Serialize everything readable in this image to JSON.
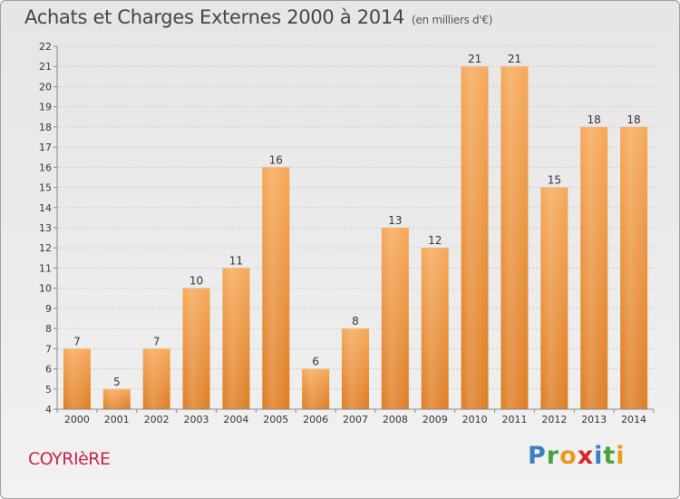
{
  "header": {
    "title": "Achats et Charges Externes 2000 à 2014",
    "subtitle": "(en milliers d'€)"
  },
  "footer": {
    "commune": "COYRIèRE",
    "logo_letters": [
      "P",
      "r",
      "o",
      "x",
      "i",
      "t",
      "i"
    ],
    "logo_colors": [
      "#3d7fc1",
      "#4aa33a",
      "#e89a1e",
      "#d42828",
      "#3d7fc1",
      "#4aa33a",
      "#e89a1e"
    ]
  },
  "colors": {
    "bar_top": "#f6a858",
    "bar_bottom": "#de7d24",
    "grid": "#cccccc",
    "axis": "#888888",
    "text": "#333333"
  },
  "chart_data": {
    "type": "bar",
    "title": "Achats et Charges Externes 2000 à 2014",
    "subtitle": "(en milliers d'€)",
    "categories": [
      "2000",
      "2001",
      "2002",
      "2003",
      "2004",
      "2005",
      "2006",
      "2007",
      "2008",
      "2009",
      "2010",
      "2011",
      "2012",
      "2013",
      "2014"
    ],
    "values": [
      7,
      5,
      7,
      10,
      11,
      16,
      6,
      8,
      13,
      12,
      21,
      21,
      15,
      18,
      18
    ],
    "xlabel": "",
    "ylabel": "",
    "ylim": [
      4,
      22
    ],
    "yticks": [
      4,
      5,
      6,
      7,
      8,
      9,
      10,
      11,
      12,
      13,
      14,
      15,
      16,
      17,
      18,
      19,
      20,
      21,
      22
    ],
    "grid": true,
    "data_labels": true,
    "legend": "none"
  }
}
